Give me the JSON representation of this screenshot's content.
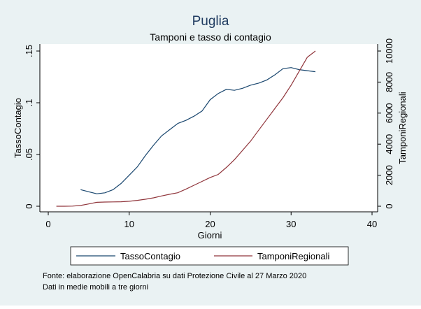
{
  "chart_data": {
    "type": "line",
    "title": "Puglia",
    "subtitle": "Tamponi e tasso di contagio",
    "xlabel": "Giorni",
    "ylabel_left": "TassoContagio",
    "ylabel_right": "TamponiRegionali",
    "xlim": [
      0,
      40
    ],
    "ylim_left": [
      0,
      0.15
    ],
    "ylim_right": [
      0,
      10000
    ],
    "x_ticks": [
      "0",
      "10",
      "20",
      "30",
      "40"
    ],
    "y_ticks_left": [
      "0",
      ".05",
      ".1",
      ".15"
    ],
    "y_ticks_right": [
      "0",
      "2000",
      "4000",
      "6000",
      "8000",
      "10000"
    ],
    "grid": false,
    "legend_position": "bottom",
    "series": [
      {
        "name": "TassoContagio",
        "axis": "left",
        "color": "#1a476f",
        "x": [
          4,
          5,
          6,
          7,
          8,
          9,
          10,
          11,
          12,
          13,
          14,
          15,
          16,
          17,
          18,
          19,
          20,
          21,
          22,
          23,
          24,
          25,
          26,
          27,
          28,
          29,
          30,
          31,
          32,
          33
        ],
        "values": [
          0.016,
          0.014,
          0.012,
          0.013,
          0.016,
          0.022,
          0.03,
          0.038,
          0.049,
          0.059,
          0.068,
          0.074,
          0.08,
          0.083,
          0.087,
          0.092,
          0.103,
          0.109,
          0.113,
          0.112,
          0.114,
          0.117,
          0.119,
          0.122,
          0.127,
          0.133,
          0.134,
          0.132,
          0.131,
          0.13
        ]
      },
      {
        "name": "TamponiRegionali",
        "axis": "right",
        "color": "#90353b",
        "x": [
          1,
          2,
          3,
          4,
          5,
          6,
          7,
          8,
          9,
          10,
          11,
          12,
          13,
          14,
          15,
          16,
          17,
          18,
          19,
          20,
          21,
          22,
          23,
          24,
          25,
          26,
          27,
          28,
          29,
          30,
          31,
          32,
          33
        ],
        "values": [
          0,
          0,
          10,
          50,
          150,
          250,
          270,
          280,
          290,
          320,
          380,
          450,
          540,
          660,
          770,
          870,
          1100,
          1350,
          1600,
          1850,
          2050,
          2500,
          3000,
          3600,
          4200,
          4900,
          5600,
          6300,
          7000,
          7800,
          8700,
          9600,
          10000
        ]
      }
    ],
    "notes": [
      "Fonte: elaborazione OpenCalabria su dati Protezione Civile al 27 Marzo 2020",
      "Dati in medie mobili a tre giorni"
    ]
  }
}
